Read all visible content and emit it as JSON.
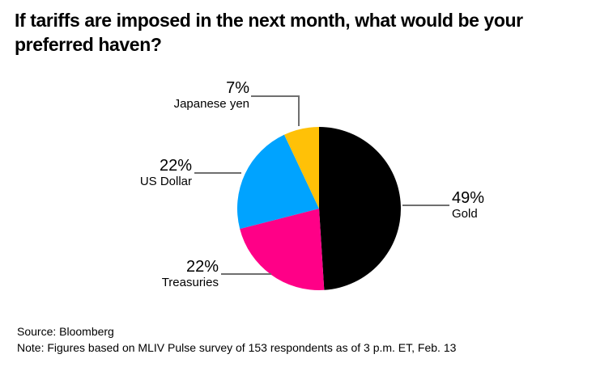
{
  "title": "If tariffs are imposed in the next month, what would be your preferred haven?",
  "chart_data": {
    "type": "pie",
    "title": "If tariffs are imposed in the next month, what would be your preferred haven?",
    "start_angle_deg": 0,
    "direction": "clockwise",
    "legend_position": "callout-labels",
    "slices": [
      {
        "label": "Gold",
        "value_pct": 49,
        "color": "#000000"
      },
      {
        "label": "Treasuries",
        "value_pct": 22,
        "color": "#FF0087"
      },
      {
        "label": "US Dollar",
        "value_pct": 22,
        "color": "#00A3FF"
      },
      {
        "label": "Japanese yen",
        "value_pct": 7,
        "color": "#FFC107"
      }
    ]
  },
  "callouts": {
    "japanese_yen": {
      "pct": "7%",
      "name": "Japanese yen"
    },
    "us_dollar": {
      "pct": "22%",
      "name": "US Dollar"
    },
    "treasuries": {
      "pct": "22%",
      "name": "Treasuries"
    },
    "gold": {
      "pct": "49%",
      "name": "Gold"
    }
  },
  "footer": {
    "source": "Source: Bloomberg",
    "note": "Note: Figures based on MLIV Pulse survey of 153 respondents as of 3 p.m. ET, Feb. 13"
  },
  "colors": {
    "background": "#FFFFFF",
    "text": "#000000",
    "leader_line": "#6F6F6F"
  }
}
